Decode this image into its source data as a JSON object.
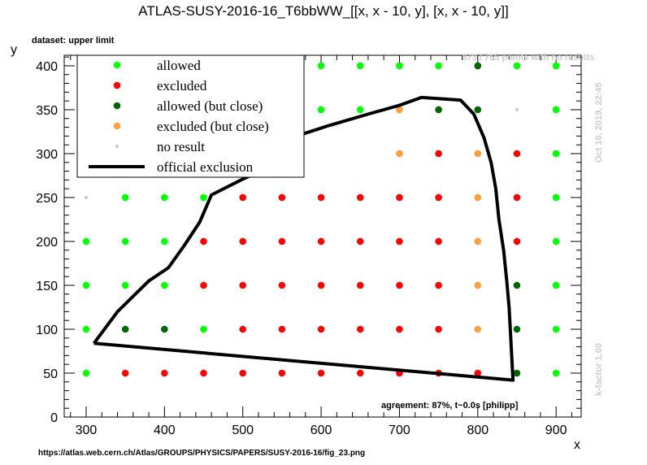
{
  "chart_data": {
    "type": "scatter",
    "title": "ATLAS-SUSY-2016-16_T6bbWW_[[x, x - 10, y], [x, x - 10, y]]",
    "xlabel": "x",
    "ylabel": "y",
    "xlim": [
      272,
      932
    ],
    "ylim": [
      0,
      412
    ],
    "xticks": [
      300,
      400,
      500,
      600,
      700,
      800,
      900
    ],
    "yticks": [
      0,
      50,
      100,
      150,
      200,
      250,
      300,
      350,
      400
    ],
    "dataset_label": "dataset: upper limit",
    "points_note": "673 / 765 points with no results",
    "timestamp": "Oct 16, 2019, 22:45",
    "kfactor": "k-factor 1.00",
    "agreement": "agreement: 87%, t~0.0s [philipp]",
    "url": "https://atlas.web.cern.ch/Atlas/GROUPS/PHYSICS/PAPERS/SUSY-2016-16/fig_23.png",
    "legend": {
      "placement": "top-left",
      "entries": [
        {
          "key": "allowed",
          "label": "allowed",
          "color": "#00ff00"
        },
        {
          "key": "excluded",
          "label": "excluded",
          "color": "#ff0000"
        },
        {
          "key": "allowed_close",
          "label": "allowed (but close)",
          "color": "#006400"
        },
        {
          "key": "excluded_close",
          "label": "excluded (but close)",
          "color": "#ffa040"
        },
        {
          "key": "noresult",
          "label": "no result",
          "color": "#cccccc"
        },
        {
          "key": "official",
          "label": "official exclusion",
          "color": "#000000"
        }
      ]
    },
    "series": [
      {
        "name": "allowed",
        "color": "#00ff00",
        "points": [
          [
            350,
            400
          ],
          [
            400,
            400
          ],
          [
            450,
            400
          ],
          [
            500,
            400
          ],
          [
            550,
            400
          ],
          [
            600,
            400
          ],
          [
            650,
            400
          ],
          [
            700,
            400
          ],
          [
            750,
            400
          ],
          [
            800,
            400
          ],
          [
            850,
            400
          ],
          [
            900,
            400
          ],
          [
            450,
            350
          ],
          [
            500,
            350
          ],
          [
            550,
            350
          ],
          [
            600,
            350
          ],
          [
            650,
            350
          ],
          [
            900,
            350
          ],
          [
            400,
            300
          ],
          [
            450,
            300
          ],
          [
            500,
            300
          ],
          [
            550,
            300
          ],
          [
            900,
            300
          ],
          [
            350,
            250
          ],
          [
            400,
            250
          ],
          [
            450,
            250
          ],
          [
            900,
            250
          ],
          [
            300,
            200
          ],
          [
            350,
            200
          ],
          [
            400,
            200
          ],
          [
            900,
            200
          ],
          [
            300,
            150
          ],
          [
            350,
            150
          ],
          [
            400,
            150
          ],
          [
            900,
            150
          ],
          [
            300,
            100
          ],
          [
            450,
            100
          ],
          [
            900,
            100
          ],
          [
            300,
            50
          ],
          [
            350,
            50
          ],
          [
            900,
            50
          ]
        ]
      },
      {
        "name": "excluded",
        "color": "#ff0000",
        "points": [
          [
            750,
            300
          ],
          [
            850,
            300
          ],
          [
            500,
            250
          ],
          [
            550,
            250
          ],
          [
            600,
            250
          ],
          [
            650,
            250
          ],
          [
            700,
            250
          ],
          [
            750,
            250
          ],
          [
            850,
            250
          ],
          [
            450,
            200
          ],
          [
            500,
            200
          ],
          [
            550,
            200
          ],
          [
            600,
            200
          ],
          [
            650,
            200
          ],
          [
            700,
            200
          ],
          [
            750,
            200
          ],
          [
            850,
            200
          ],
          [
            450,
            150
          ],
          [
            500,
            150
          ],
          [
            550,
            150
          ],
          [
            600,
            150
          ],
          [
            650,
            150
          ],
          [
            700,
            150
          ],
          [
            750,
            150
          ],
          [
            500,
            100
          ],
          [
            550,
            100
          ],
          [
            600,
            100
          ],
          [
            650,
            100
          ],
          [
            700,
            100
          ],
          [
            750,
            100
          ],
          [
            350,
            50
          ],
          [
            400,
            50
          ],
          [
            450,
            50
          ],
          [
            500,
            50
          ],
          [
            550,
            50
          ],
          [
            600,
            50
          ],
          [
            650,
            50
          ],
          [
            700,
            50
          ],
          [
            750,
            50
          ],
          [
            800,
            50
          ]
        ]
      },
      {
        "name": "allowed (but close)",
        "color": "#006400",
        "points": [
          [
            800,
            400
          ],
          [
            750,
            350
          ],
          [
            800,
            350
          ],
          [
            850,
            150
          ],
          [
            350,
            100
          ],
          [
            400,
            100
          ],
          [
            850,
            100
          ],
          [
            850,
            50
          ]
        ]
      },
      {
        "name": "excluded (but close)",
        "color": "#ffa040",
        "points": [
          [
            700,
            350
          ],
          [
            700,
            300
          ],
          [
            800,
            300
          ],
          [
            800,
            250
          ],
          [
            800,
            200
          ],
          [
            800,
            150
          ],
          [
            800,
            100
          ]
        ]
      },
      {
        "name": "no result",
        "color": "#cccccc",
        "points": [
          [
            300,
            400
          ],
          [
            300,
            350
          ],
          [
            300,
            300
          ],
          [
            300,
            250
          ],
          [
            850,
            350
          ]
        ]
      }
    ],
    "exclusion_line": {
      "name": "official exclusion",
      "x": [
        310,
        340,
        380,
        405,
        425,
        445,
        460,
        500,
        535,
        555,
        572,
        610,
        660,
        700,
        728,
        778,
        795,
        808,
        817,
        823,
        827,
        833,
        837,
        840,
        845,
        310
      ],
      "y": [
        84,
        120,
        155,
        170,
        195,
        222,
        253,
        271,
        285,
        298,
        321,
        332,
        345,
        355,
        364,
        361,
        345,
        318,
        290,
        260,
        225,
        190,
        155,
        125,
        42,
        84
      ]
    }
  }
}
